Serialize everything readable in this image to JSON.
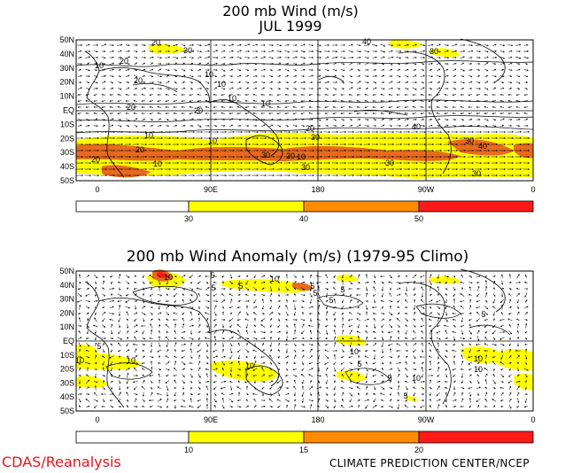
{
  "top": {
    "title_line1": "200 mb Wind (m/s)",
    "title_line2": "JUL 1999",
    "lat_labels": [
      "50N",
      "40N",
      "30N",
      "20N",
      "10N",
      "EQ",
      "10S",
      "20S",
      "30S",
      "40S",
      "50S"
    ],
    "lon_labels": [
      "0",
      "90E",
      "180",
      "90W",
      "0"
    ],
    "colorbar_ticks": [
      "30",
      "40",
      "50"
    ],
    "colorbar_colors": [
      "#ffffff",
      "#ffff00",
      "#ff8c00",
      "#ff1a1a"
    ],
    "contour_labels": [
      "20",
      "30",
      "20",
      "10",
      "10",
      "20",
      "10",
      "20",
      "10",
      "10",
      "20",
      "10",
      "20",
      "10",
      "10",
      "20",
      "30",
      "30",
      "20",
      "10",
      "30",
      "30",
      "40",
      "40",
      "30",
      "30",
      "40",
      "30",
      "20"
    ]
  },
  "bottom": {
    "title": "200 mb Wind Anomaly (m/s) (1979-95 Climo)",
    "lat_labels": [
      "50N",
      "40N",
      "30N",
      "20N",
      "10N",
      "EQ",
      "10S",
      "20S",
      "30S",
      "40S",
      "50S"
    ],
    "lon_labels": [
      "0",
      "90E",
      "180",
      "90W",
      "0"
    ],
    "colorbar_ticks": [
      "10",
      "15",
      "20"
    ],
    "colorbar_colors": [
      "#ffffff",
      "#ffff00",
      "#ff8c00",
      "#ff1a1a"
    ],
    "contour_labels": [
      "10",
      "5",
      "5",
      "10",
      "5",
      "5",
      "5",
      "5",
      "5",
      "10",
      "10",
      "5",
      "10",
      "10",
      "10",
      "5",
      "5",
      "10",
      "10",
      "5",
      "5"
    ]
  },
  "footer": {
    "left": "CDAS/Reanalysis",
    "right": "CLIMATE PREDICTION CENTER/NCEP"
  },
  "colors": {
    "yellow": "#ffff00",
    "orange": "#ff8c00",
    "dark_orange": "#e86a1f",
    "red": "#ff1a1a",
    "footer_left": "#e8141b"
  }
}
